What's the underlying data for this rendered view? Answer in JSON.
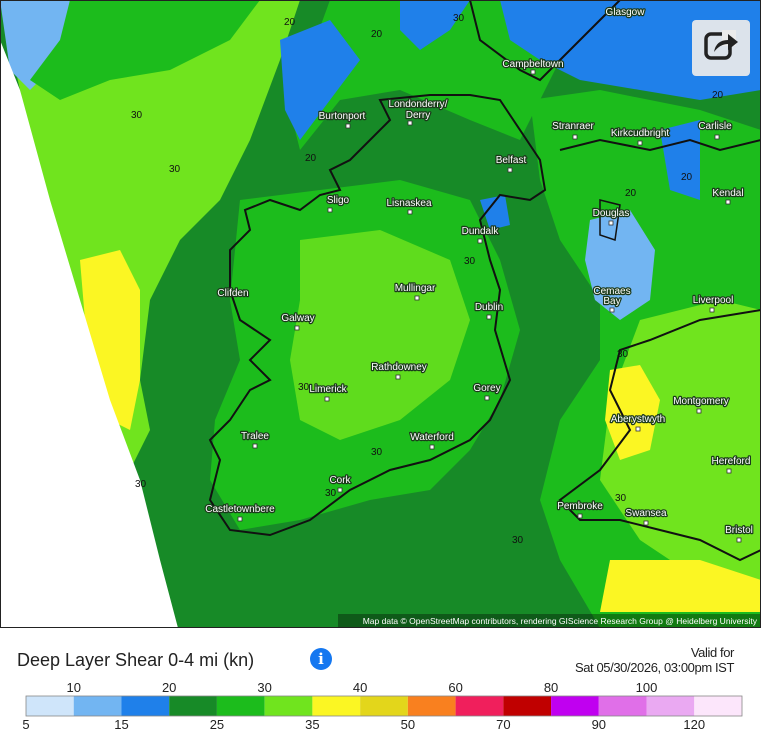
{
  "title": "Deep Layer Shear 0-4 mi (kn)",
  "valid_label": "Valid for",
  "valid_time": "Sat 05/30/2026, 03:00pm IST",
  "attribution": "Map data © OpenStreetMap contributors, rendering GIScience Research Group @ Heidelberg University",
  "cities": [
    "Glasgow",
    "Campbeltown",
    "Londonderry/",
    "Derry",
    "Burtonport",
    "Stranraer",
    "Kirkcudbright",
    "Carlisle",
    "Belfast",
    "Kendal",
    "Sligo",
    "Lisnaskea",
    "Douglas",
    "Dundalk",
    "Clifden",
    "Mullingar",
    "Cemaes",
    "Bay",
    "Liverpool",
    "Galway",
    "Dublin",
    "Rathdowney",
    "Limerick",
    "Gorey",
    "Montgomery",
    "Aberystwyth",
    "Tralee",
    "Waterford",
    "Hereford",
    "Cork",
    "Pembroke",
    "Swansea",
    "Castletownbere",
    "Bristol"
  ],
  "contour_labels": [
    30,
    30,
    30,
    20,
    20,
    20,
    20,
    20,
    20,
    30,
    30,
    30,
    30,
    30,
    30,
    30,
    30
  ],
  "legend": {
    "labels": [
      5,
      10,
      15,
      20,
      25,
      30,
      35,
      40,
      50,
      60,
      70,
      80,
      90,
      100,
      120
    ],
    "colors": [
      "#cfe5fa",
      "#72b5f2",
      "#1f80ea",
      "#178a27",
      "#1cbc1c",
      "#70e41e",
      "#fbf623",
      "#e3d61b",
      "#f9801f",
      "#f01f5c",
      "#c00000",
      "#c000f0",
      "#e06fe8",
      "#eaa9f2",
      "#fce6fb"
    ]
  }
}
